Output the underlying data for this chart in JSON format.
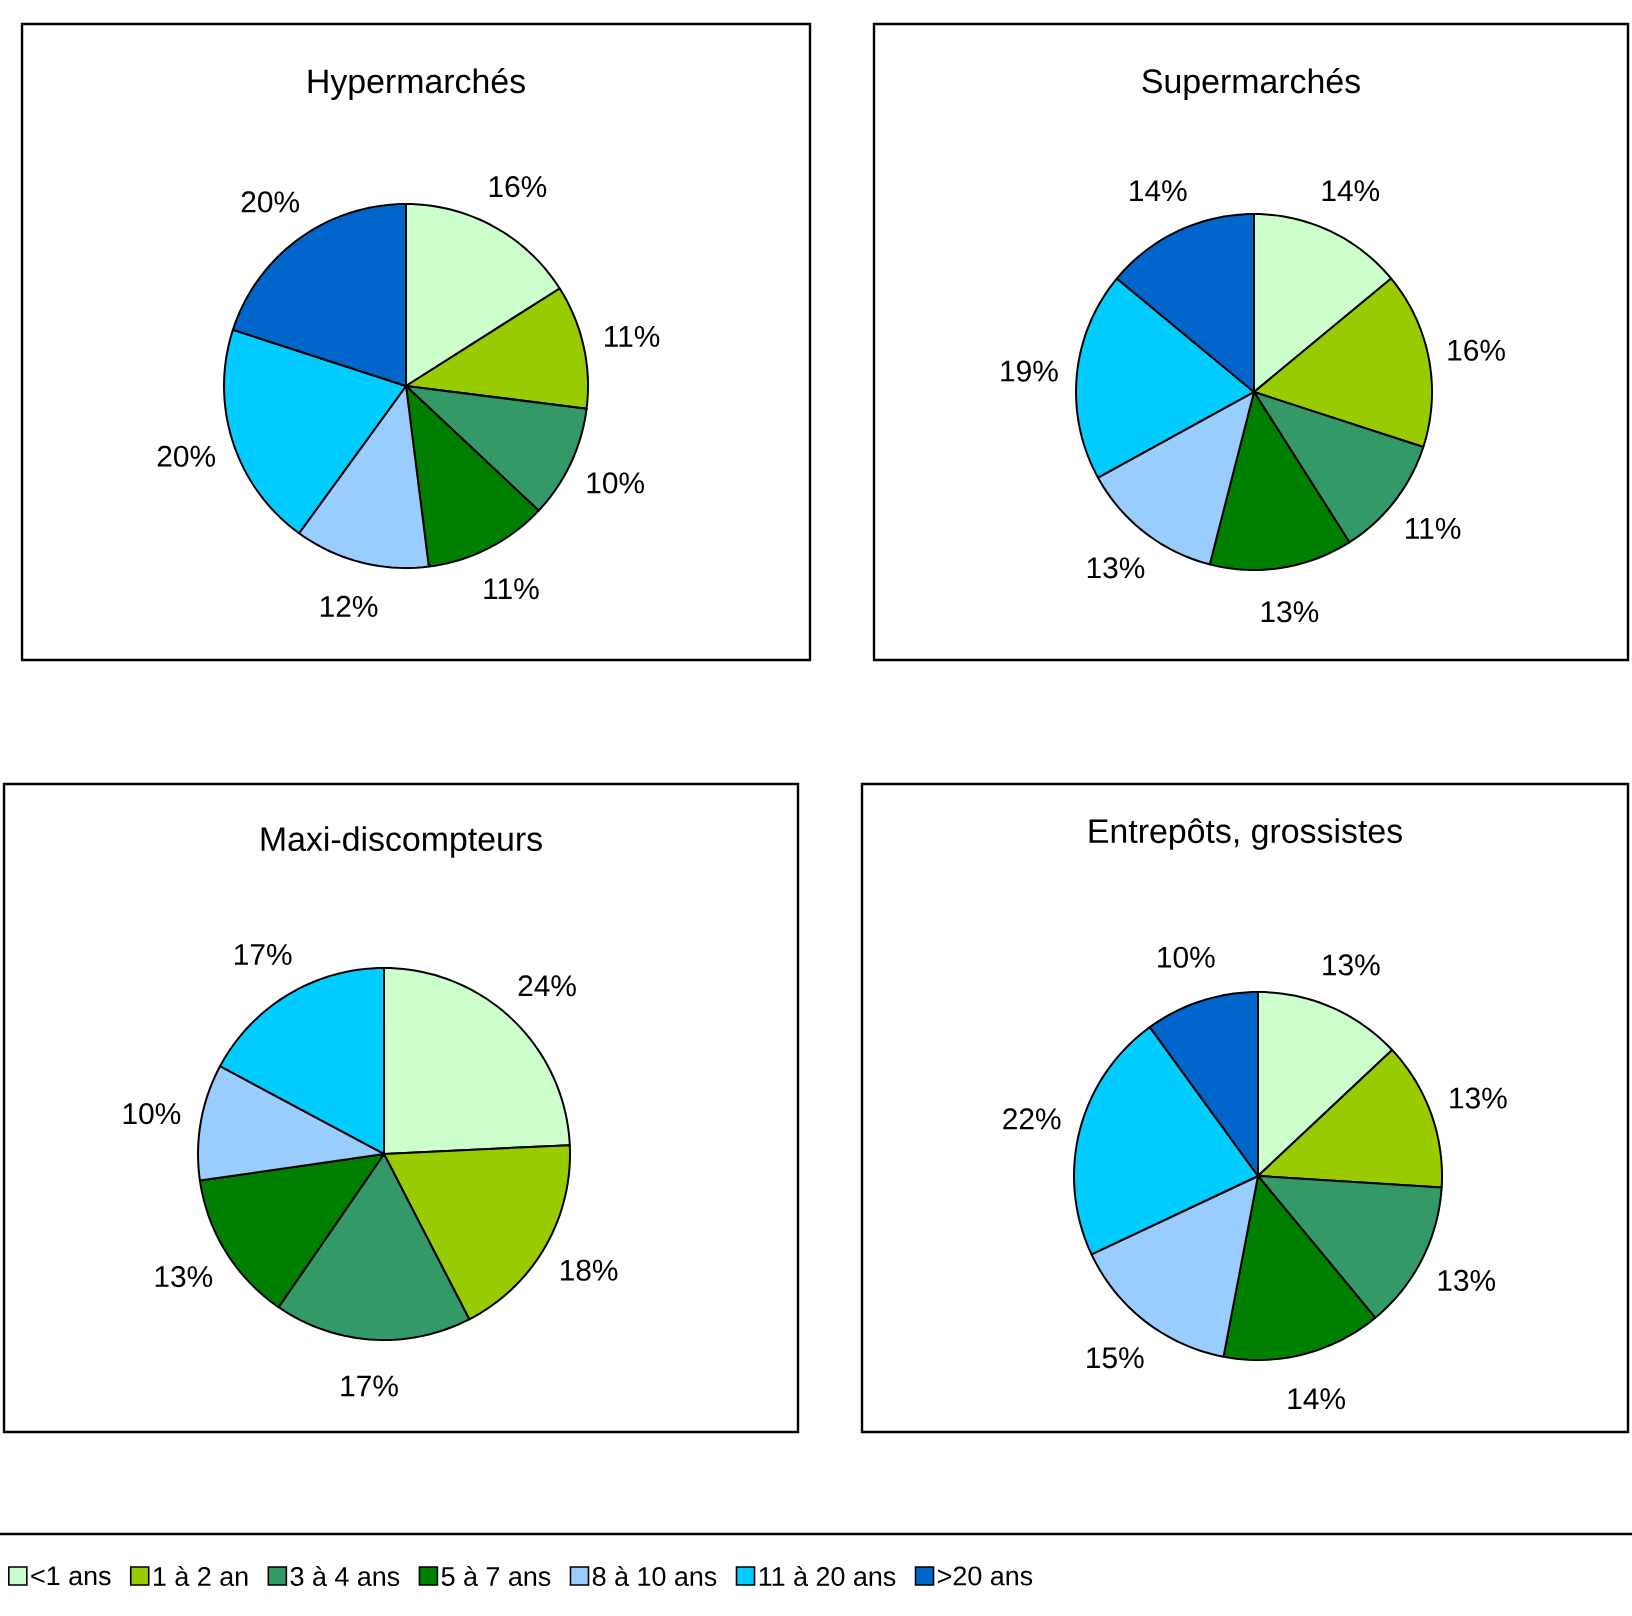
{
  "chart_data": [
    {
      "type": "pie",
      "title": "Hypermarchés",
      "legend": "bottom",
      "categories": [
        "<1 ans",
        "1 à 2 an",
        "3 à 4 ans",
        "5 à 7 ans",
        "8 à 10 ans",
        "11 à 20 ans",
        ">20 ans"
      ],
      "values": [
        16,
        11,
        10,
        11,
        12,
        20,
        20
      ],
      "value_labels": [
        "16%",
        "11%",
        "10%",
        "11%",
        "12%",
        "20%",
        "20%"
      ],
      "colors": [
        "#ccffcc",
        "#99cc00",
        "#339966",
        "#008000",
        "#99ccff",
        "#00ccff",
        "#0066cc"
      ]
    },
    {
      "type": "pie",
      "title": "Supermarchés",
      "values": [
        14,
        16,
        11,
        13,
        13,
        19,
        14
      ],
      "value_labels": [
        "14%",
        "16%",
        "11%",
        "13%",
        "13%",
        "19%",
        "14%"
      ],
      "colors": [
        "#ccffcc",
        "#99cc00",
        "#339966",
        "#008000",
        "#99ccff",
        "#00ccff",
        "#0066cc"
      ]
    },
    {
      "type": "pie",
      "title": "Maxi-discompteurs",
      "values": [
        24,
        18,
        17,
        13,
        10,
        17
      ],
      "value_labels": [
        "24%",
        "18%",
        "17%",
        "13%",
        "10%",
        "17%"
      ],
      "colors": [
        "#ccffcc",
        "#99cc00",
        "#339966",
        "#008000",
        "#99ccff",
        "#00ccff"
      ]
    },
    {
      "type": "pie",
      "title": "Entrepôts, grossistes",
      "values": [
        13,
        13,
        13,
        14,
        15,
        22,
        10
      ],
      "value_labels": [
        "13%",
        "13%",
        "13%",
        "14%",
        "15%",
        "22%",
        "10%"
      ],
      "colors": [
        "#ccffcc",
        "#99cc00",
        "#339966",
        "#008000",
        "#99ccff",
        "#00ccff",
        "#0066cc"
      ]
    }
  ]
}
